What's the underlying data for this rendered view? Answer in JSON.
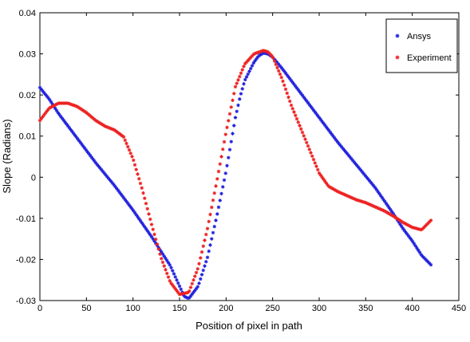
{
  "chart_data": {
    "type": "scatter",
    "title": "",
    "xlabel": "Position of pixel in path",
    "ylabel": "Slope (Radians)",
    "xlim": [
      0,
      450
    ],
    "ylim": [
      -0.03,
      0.04
    ],
    "xticks": [
      0,
      50,
      100,
      150,
      200,
      250,
      300,
      350,
      400,
      450
    ],
    "yticks": [
      -0.03,
      -0.02,
      -0.01,
      0,
      0.01,
      0.02,
      0.03,
      0.04
    ],
    "xtick_labels": [
      "0",
      "50",
      "100",
      "150",
      "200",
      "250",
      "300",
      "350",
      "400",
      "450"
    ],
    "ytick_labels": [
      "-0.03",
      "-0.02",
      "-0.01",
      "0",
      "0.01",
      "0.02",
      "0.03",
      "0.04"
    ],
    "grid": false,
    "legend_position": "top-right",
    "marker": "*",
    "series": [
      {
        "name": "Ansys",
        "color": "#2222dd",
        "x": [
          0,
          10,
          20,
          40,
          60,
          80,
          100,
          120,
          140,
          150,
          155,
          160,
          170,
          180,
          190,
          200,
          210,
          215,
          220,
          230,
          235,
          240,
          245,
          250,
          260,
          280,
          300,
          320,
          340,
          360,
          380,
          390,
          400,
          410,
          420
        ],
        "y": [
          0.0218,
          0.019,
          0.0155,
          0.0095,
          0.0035,
          -0.002,
          -0.008,
          -0.0145,
          -0.0215,
          -0.0265,
          -0.029,
          -0.0295,
          -0.0265,
          -0.0195,
          -0.0095,
          0.0015,
          0.0145,
          0.0195,
          0.0235,
          0.028,
          0.0295,
          0.0302,
          0.03,
          0.0292,
          0.0265,
          0.0205,
          0.0145,
          0.0085,
          0.003,
          -0.0025,
          -0.009,
          -0.0125,
          -0.0155,
          -0.019,
          -0.0213
        ]
      },
      {
        "name": "Experiment",
        "color": "#ee2222",
        "x": [
          0,
          10,
          20,
          30,
          40,
          50,
          60,
          70,
          80,
          90,
          100,
          110,
          120,
          130,
          140,
          150,
          160,
          170,
          180,
          190,
          200,
          210,
          220,
          230,
          240,
          245,
          250,
          260,
          270,
          280,
          290,
          300,
          310,
          320,
          330,
          340,
          350,
          360,
          370,
          380,
          390,
          400,
          410,
          420
        ],
        "y": [
          0.0138,
          0.0168,
          0.018,
          0.018,
          0.0172,
          0.0157,
          0.0138,
          0.0124,
          0.0115,
          0.0098,
          0.0045,
          -0.003,
          -0.0115,
          -0.0195,
          -0.0255,
          -0.0285,
          -0.028,
          -0.022,
          -0.0125,
          -0.001,
          0.011,
          0.022,
          0.0275,
          0.03,
          0.0308,
          0.0305,
          0.0293,
          0.024,
          0.0175,
          0.012,
          0.0065,
          0.001,
          -0.0022,
          -0.0035,
          -0.0045,
          -0.0055,
          -0.0062,
          -0.0072,
          -0.0082,
          -0.0095,
          -0.011,
          -0.0122,
          -0.0128,
          -0.0105
        ]
      }
    ]
  }
}
